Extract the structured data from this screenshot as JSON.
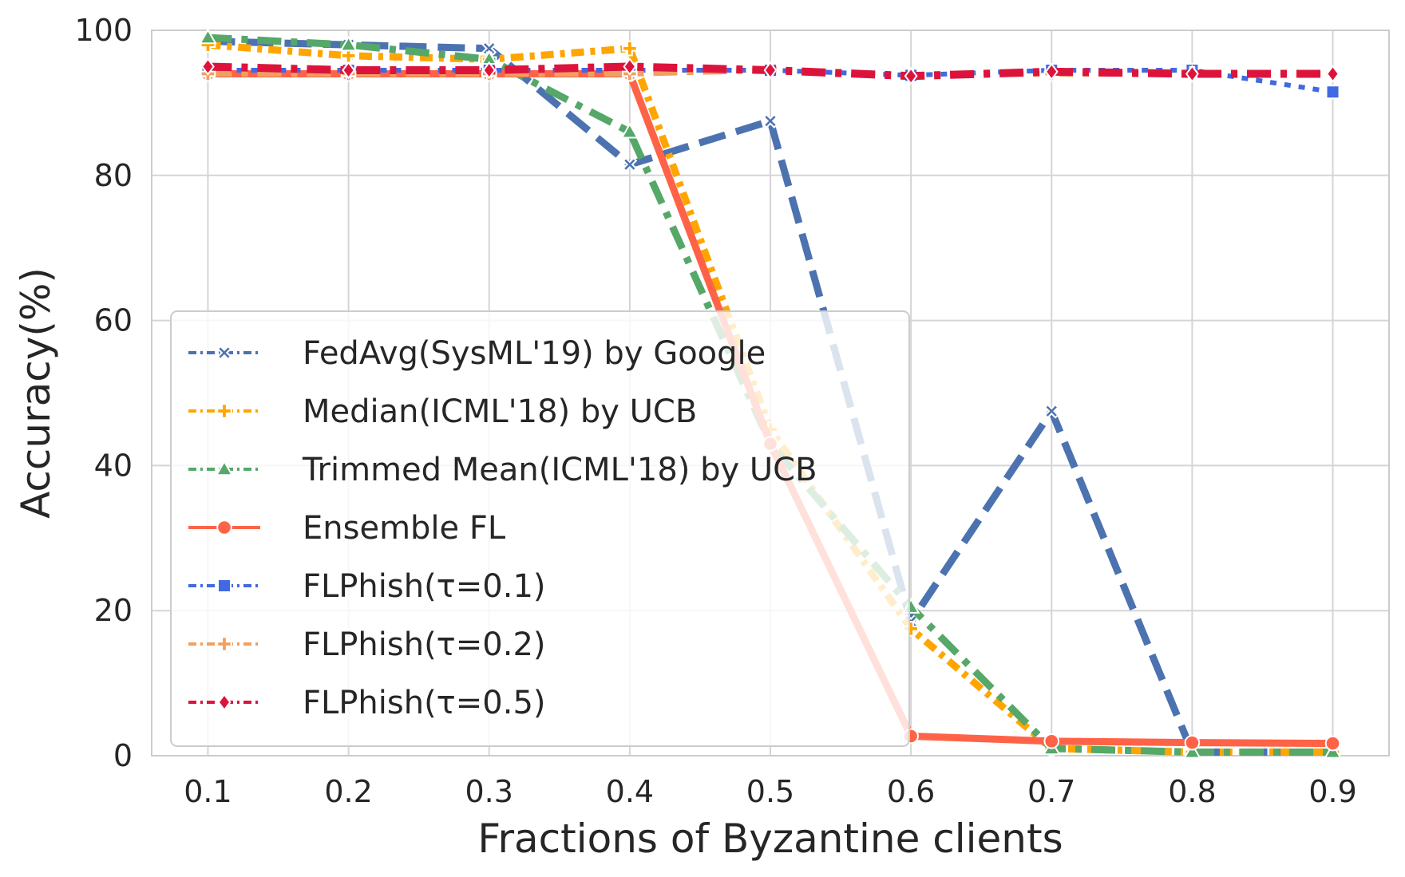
{
  "chart_data": {
    "type": "line",
    "title": "",
    "xlabel": "Fractions of Byzantine clients",
    "ylabel": "Accuracy(%)",
    "x": [
      0.1,
      0.2,
      0.3,
      0.4,
      0.5,
      0.6,
      0.7,
      0.8,
      0.9
    ],
    "x_tick_labels": [
      "0.1",
      "0.2",
      "0.3",
      "0.4",
      "0.5",
      "0.6",
      "0.7",
      "0.8",
      "0.9"
    ],
    "y_ticks": [
      0,
      20,
      40,
      60,
      80,
      100
    ],
    "y_tick_labels": [
      "0",
      "20",
      "40",
      "60",
      "80",
      "100"
    ],
    "xlim": [
      0.06,
      0.94
    ],
    "ylim": [
      0,
      100
    ],
    "grid": true,
    "legend_position": "lower-left",
    "series": [
      {
        "name": "FedAvg(SysML'19) by Google",
        "color": "#4c72b0",
        "dash": "dashed",
        "marker": "x",
        "values": [
          98.5,
          98.0,
          97.5,
          81.5,
          87.5,
          18.5,
          47.5,
          0.5,
          0.5
        ]
      },
      {
        "name": "Median(ICML'18) by UCB",
        "color": "#ffa500",
        "dash": "densedashdot",
        "marker": "plus",
        "values": [
          98.0,
          96.5,
          96.0,
          97.5,
          45.0,
          17.5,
          1.0,
          0.5,
          0.5
        ]
      },
      {
        "name": "Trimmed Mean(ICML'18) by UCB",
        "color": "#55a868",
        "dash": "dashdot",
        "marker": "triangle",
        "values": [
          99.0,
          98.0,
          96.0,
          86.0,
          43.0,
          20.5,
          1.0,
          0.5,
          0.5
        ]
      },
      {
        "name": "Ensemble FL",
        "color": "#ff6347",
        "dash": "solid",
        "marker": "circle",
        "values": [
          94.0,
          94.0,
          94.0,
          94.0,
          43.0,
          2.7,
          2.0,
          1.8,
          1.7
        ]
      },
      {
        "name": "FLPhish(τ=0.1)",
        "color": "#4169e1",
        "dash": "dotted",
        "marker": "square",
        "values": [
          94.5,
          94.5,
          94.5,
          94.5,
          94.5,
          93.8,
          94.5,
          94.5,
          91.5
        ]
      },
      {
        "name": "FLPhish(τ=0.2)",
        "color": "#f0a060",
        "dash": "dashdot",
        "marker": "plus",
        "values": [
          94.0,
          94.0,
          94.0,
          94.0,
          94.5,
          93.8,
          94.0,
          94.0,
          94.0
        ]
      },
      {
        "name": "FLPhish(τ=0.5)",
        "color": "#dc143c",
        "dash": "dashdot",
        "marker": "diamond",
        "values": [
          95.0,
          94.5,
          94.5,
          95.0,
          94.5,
          93.7,
          94.3,
          94.0,
          94.0
        ]
      }
    ]
  }
}
